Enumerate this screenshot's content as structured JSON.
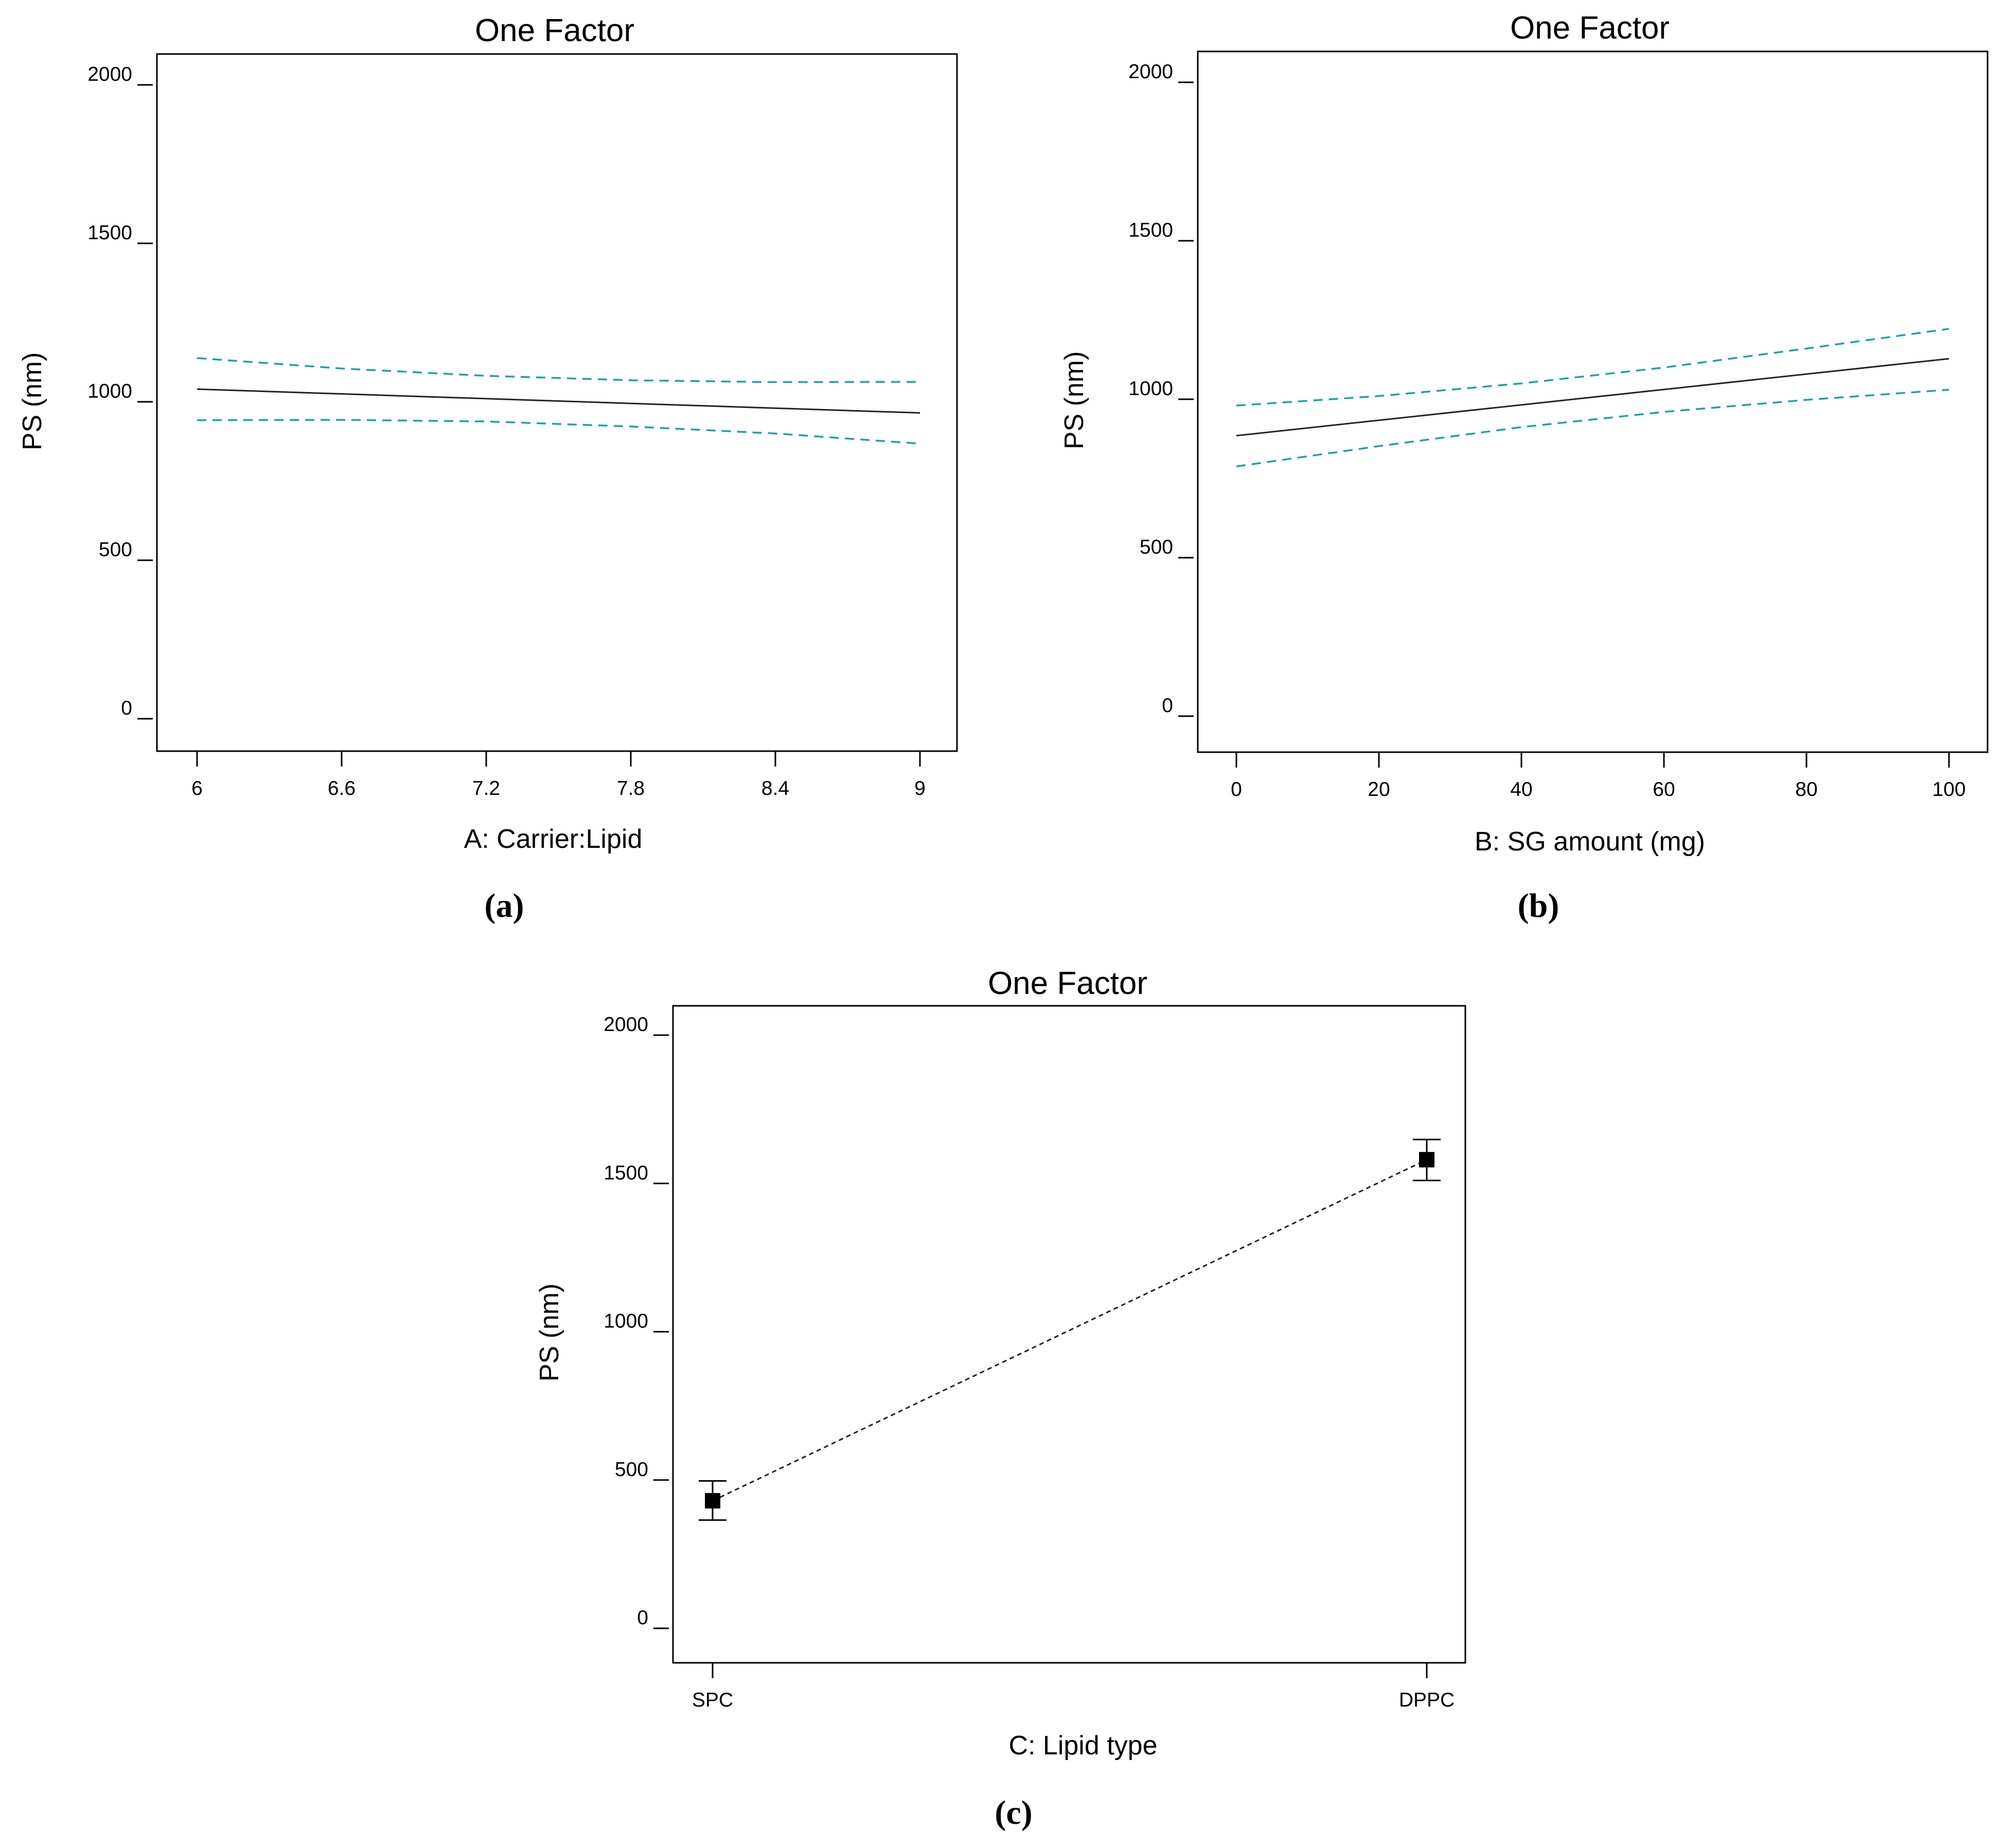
{
  "colors": {
    "ci": "#1aa3a6",
    "prediction": "#222222",
    "marker": "#000000"
  },
  "chart_data": [
    {
      "panel": "(a)",
      "type": "line",
      "title": "One Factor",
      "xlabel": "A: Carrier:Lipid",
      "ylabel": "PS (nm)",
      "xlim": [
        6,
        9
      ],
      "ylim": [
        0,
        2000
      ],
      "xticks": [
        "6",
        "6.6",
        "7.2",
        "7.8",
        "8.4",
        "9"
      ],
      "xtick_values": [
        6,
        6.6,
        7.2,
        7.8,
        8.4,
        9
      ],
      "yticks": [
        "0",
        "500",
        "1000",
        "1500",
        "2000"
      ],
      "ytick_values": [
        0,
        500,
        1000,
        1500,
        2000
      ],
      "series": [
        {
          "name": "prediction",
          "style": "solid",
          "x": [
            6,
            9
          ],
          "y": [
            1040,
            965
          ]
        },
        {
          "name": "upper 95% CI",
          "style": "dashed",
          "x": [
            6,
            6.6,
            7.2,
            7.8,
            8.4,
            9
          ],
          "y": [
            1138,
            1105,
            1082,
            1068,
            1062,
            1063
          ]
        },
        {
          "name": "lower 95% CI",
          "style": "dashed",
          "x": [
            6,
            6.6,
            7.2,
            7.8,
            8.4,
            9
          ],
          "y": [
            942,
            943,
            938,
            922,
            900,
            868
          ]
        }
      ]
    },
    {
      "panel": "(b)",
      "type": "line",
      "title": "One Factor",
      "xlabel": "B: SG amount (mg)",
      "ylabel": "PS (nm)",
      "xlim": [
        0,
        100
      ],
      "ylim": [
        0,
        2000
      ],
      "xticks": [
        "0",
        "20",
        "40",
        "60",
        "80",
        "100"
      ],
      "xtick_values": [
        0,
        20,
        40,
        60,
        80,
        100
      ],
      "yticks": [
        "0",
        "500",
        "1000",
        "1500",
        "2000"
      ],
      "ytick_values": [
        0,
        500,
        1000,
        1500,
        2000
      ],
      "series": [
        {
          "name": "prediction",
          "style": "solid",
          "x": [
            0,
            100
          ],
          "y": [
            885,
            1128
          ]
        },
        {
          "name": "upper 95% CI",
          "style": "dashed",
          "x": [
            0,
            20,
            40,
            60,
            80,
            100
          ],
          "y": [
            980,
            1010,
            1050,
            1100,
            1160,
            1222
          ]
        },
        {
          "name": "lower 95% CI",
          "style": "dashed",
          "x": [
            0,
            20,
            40,
            60,
            80,
            100
          ],
          "y": [
            788,
            852,
            912,
            960,
            998,
            1030
          ]
        }
      ]
    },
    {
      "panel": "(c)",
      "type": "scatter",
      "title": "One Factor",
      "xlabel": "C: Lipid type",
      "ylabel": "PS (nm)",
      "categories": [
        "SPC",
        "DPPC"
      ],
      "ylim": [
        0,
        2000
      ],
      "yticks": [
        "0",
        "500",
        "1000",
        "1500",
        "2000"
      ],
      "ytick_values": [
        0,
        500,
        1000,
        1500,
        2000
      ],
      "points": [
        {
          "category": "SPC",
          "y": 430,
          "low": 365,
          "high": 497
        },
        {
          "category": "DPPC",
          "y": 1580,
          "low": 1510,
          "high": 1648
        }
      ],
      "connector": "dotted"
    }
  ]
}
